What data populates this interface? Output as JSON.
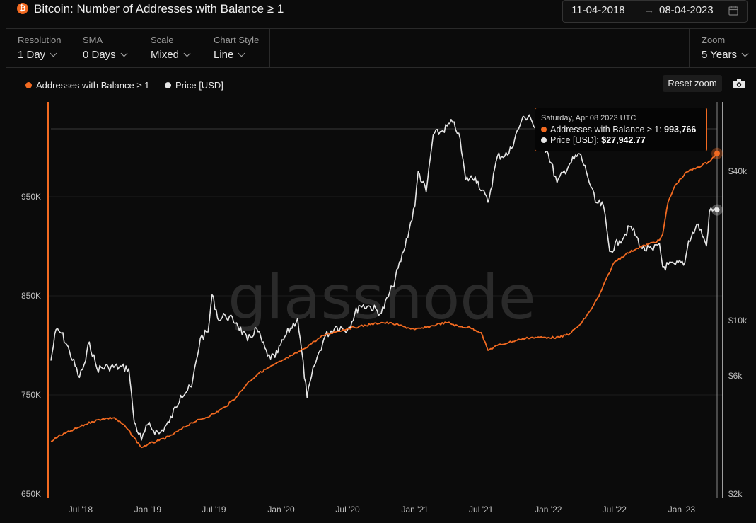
{
  "header": {
    "title": "Bitcoin: Number of Addresses with Balance ≥ 1",
    "date_start": "11-04-2018",
    "date_arrow": "→",
    "date_end": "08-04-2023"
  },
  "toolbar": {
    "resolution": {
      "label": "Resolution",
      "value": "1 Day"
    },
    "sma": {
      "label": "SMA",
      "value": "0 Days"
    },
    "scale": {
      "label": "Scale",
      "value": "Mixed"
    },
    "chart_style": {
      "label": "Chart Style",
      "value": "Line"
    },
    "zoom": {
      "label": "Zoom",
      "value": "5 Years"
    }
  },
  "controls": {
    "reset_zoom": "Reset zoom"
  },
  "icons": [
    "bitcoin-icon",
    "calendar-icon",
    "camera-icon"
  ],
  "watermark": "glassnode",
  "colors": {
    "addresses": "#f26a21",
    "price": "#e6e6e6",
    "background": "#0b0b0b"
  },
  "tooltip": {
    "date": "Saturday, Apr 08 2023 UTC",
    "row1_label": "Addresses with Balance ≥ 1:",
    "row1_value": "993,766",
    "row2_label": "Price [USD]:",
    "row2_value": "$27,942.77"
  },
  "chart_data": {
    "type": "line",
    "title": "Bitcoin: Number of Addresses with Balance ≥ 1",
    "legend_placement": "top-left",
    "x_ticks": [
      "Jul '18",
      "Jan '19",
      "Jul '19",
      "Jan '20",
      "Jul '20",
      "Jan '21",
      "Jul '21",
      "Jan '22",
      "Jul '22",
      "Jan '23"
    ],
    "y_left": {
      "ticks": [
        "650K",
        "750K",
        "850K",
        "950K"
      ],
      "range": [
        650000,
        1050000
      ],
      "scale": "linear"
    },
    "y_right": {
      "ticks": [
        "$2k",
        "$6k",
        "$10k",
        "$40k"
      ],
      "range": [
        2000,
        70000
      ],
      "scale": "log"
    },
    "series": [
      {
        "name": "Addresses with Balance ≥ 1",
        "axis": "left",
        "color": "#f26a21",
        "points": [
          [
            "2018-04-11",
            703000
          ],
          [
            "2018-05-01",
            708000
          ],
          [
            "2018-06-01",
            713000
          ],
          [
            "2018-07-01",
            718000
          ],
          [
            "2018-08-01",
            723000
          ],
          [
            "2018-09-01",
            726000
          ],
          [
            "2018-10-01",
            727000
          ],
          [
            "2018-11-01",
            718000
          ],
          [
            "2018-12-15",
            697000
          ],
          [
            "2019-01-01",
            700000
          ],
          [
            "2019-02-01",
            704000
          ],
          [
            "2019-03-01",
            708000
          ],
          [
            "2019-04-01",
            715000
          ],
          [
            "2019-05-01",
            722000
          ],
          [
            "2019-06-01",
            726000
          ],
          [
            "2019-07-01",
            731000
          ],
          [
            "2019-08-01",
            738000
          ],
          [
            "2019-09-01",
            748000
          ],
          [
            "2019-10-01",
            762000
          ],
          [
            "2019-11-01",
            772000
          ],
          [
            "2019-12-01",
            778000
          ],
          [
            "2020-01-01",
            784000
          ],
          [
            "2020-02-01",
            790000
          ],
          [
            "2020-03-01",
            796000
          ],
          [
            "2020-04-01",
            804000
          ],
          [
            "2020-05-01",
            811000
          ],
          [
            "2020-06-01",
            814000
          ],
          [
            "2020-07-01",
            817000
          ],
          [
            "2020-08-01",
            819000
          ],
          [
            "2020-09-01",
            821000
          ],
          [
            "2020-10-01",
            823000
          ],
          [
            "2020-11-01",
            822000
          ],
          [
            "2020-12-01",
            819000
          ],
          [
            "2021-01-01",
            816000
          ],
          [
            "2021-02-01",
            818000
          ],
          [
            "2021-03-01",
            821000
          ],
          [
            "2021-04-01",
            823000
          ],
          [
            "2021-05-01",
            819000
          ],
          [
            "2021-06-01",
            818000
          ],
          [
            "2021-07-01",
            813000
          ],
          [
            "2021-07-20",
            795000
          ],
          [
            "2021-08-15",
            800000
          ],
          [
            "2021-09-15",
            803000
          ],
          [
            "2021-10-15",
            806000
          ],
          [
            "2021-11-15",
            808000
          ],
          [
            "2022-01-01",
            808000
          ],
          [
            "2022-02-01",
            808000
          ],
          [
            "2022-03-01",
            812000
          ],
          [
            "2022-04-01",
            822000
          ],
          [
            "2022-05-01",
            838000
          ],
          [
            "2022-05-20",
            850000
          ],
          [
            "2022-06-15",
            872000
          ],
          [
            "2022-07-01",
            884000
          ],
          [
            "2022-08-01",
            892000
          ],
          [
            "2022-09-01",
            898000
          ],
          [
            "2022-10-01",
            902000
          ],
          [
            "2022-11-01",
            906000
          ],
          [
            "2022-11-10",
            912000
          ],
          [
            "2022-11-25",
            945000
          ],
          [
            "2022-12-15",
            962000
          ],
          [
            "2023-01-15",
            975000
          ],
          [
            "2023-02-15",
            980000
          ],
          [
            "2023-03-15",
            985000
          ],
          [
            "2023-04-08",
            993766
          ]
        ]
      },
      {
        "name": "Price [USD]",
        "axis": "right",
        "color": "#e6e6e6",
        "points": [
          [
            "2018-04-11",
            6900
          ],
          [
            "2018-04-25",
            9200
          ],
          [
            "2018-05-10",
            8900
          ],
          [
            "2018-06-01",
            7500
          ],
          [
            "2018-06-28",
            5900
          ],
          [
            "2018-07-15",
            6900
          ],
          [
            "2018-07-25",
            8200
          ],
          [
            "2018-08-15",
            6400
          ],
          [
            "2018-09-15",
            6500
          ],
          [
            "2018-10-15",
            6500
          ],
          [
            "2018-11-10",
            6400
          ],
          [
            "2018-11-25",
            3900
          ],
          [
            "2018-12-15",
            3300
          ],
          [
            "2019-01-01",
            3800
          ],
          [
            "2019-02-01",
            3500
          ],
          [
            "2019-03-01",
            3900
          ],
          [
            "2019-04-01",
            5000
          ],
          [
            "2019-05-01",
            5400
          ],
          [
            "2019-05-25",
            8500
          ],
          [
            "2019-06-15",
            9000
          ],
          [
            "2019-06-26",
            12700
          ],
          [
            "2019-07-15",
            10000
          ],
          [
            "2019-08-01",
            10500
          ],
          [
            "2019-09-01",
            9800
          ],
          [
            "2019-10-01",
            8300
          ],
          [
            "2019-10-26",
            9300
          ],
          [
            "2019-11-25",
            7200
          ],
          [
            "2019-12-15",
            7100
          ],
          [
            "2020-01-15",
            8800
          ],
          [
            "2020-02-15",
            10200
          ],
          [
            "2020-03-12",
            4900
          ],
          [
            "2020-04-01",
            6600
          ],
          [
            "2020-05-01",
            8700
          ],
          [
            "2020-06-01",
            9500
          ],
          [
            "2020-07-01",
            9200
          ],
          [
            "2020-08-01",
            11500
          ],
          [
            "2020-09-01",
            11400
          ],
          [
            "2020-10-01",
            10700
          ],
          [
            "2020-11-01",
            13700
          ],
          [
            "2020-12-01",
            19000
          ],
          [
            "2021-01-01",
            29000
          ],
          [
            "2021-01-10",
            40000
          ],
          [
            "2021-02-01",
            33000
          ],
          [
            "2021-02-20",
            56000
          ],
          [
            "2021-03-15",
            58000
          ],
          [
            "2021-04-14",
            63000
          ],
          [
            "2021-05-01",
            57000
          ],
          [
            "2021-05-20",
            37000
          ],
          [
            "2021-06-15",
            38000
          ],
          [
            "2021-07-20",
            30000
          ],
          [
            "2021-08-15",
            46000
          ],
          [
            "2021-09-15",
            47000
          ],
          [
            "2021-10-20",
            64000
          ],
          [
            "2021-11-10",
            67500
          ],
          [
            "2021-12-01",
            57000
          ],
          [
            "2022-01-01",
            47000
          ],
          [
            "2022-01-25",
            36000
          ],
          [
            "2022-03-01",
            43000
          ],
          [
            "2022-03-28",
            47000
          ],
          [
            "2022-04-15",
            40000
          ],
          [
            "2022-05-10",
            30000
          ],
          [
            "2022-06-01",
            29000
          ],
          [
            "2022-06-18",
            19000
          ],
          [
            "2022-07-15",
            21000
          ],
          [
            "2022-08-15",
            24000
          ],
          [
            "2022-09-15",
            19500
          ],
          [
            "2022-10-15",
            19200
          ],
          [
            "2022-11-01",
            20500
          ],
          [
            "2022-11-10",
            16500
          ],
          [
            "2022-12-15",
            16800
          ],
          [
            "2023-01-10",
            17200
          ],
          [
            "2023-01-20",
            21000
          ],
          [
            "2023-02-15",
            24500
          ],
          [
            "2023-03-10",
            20000
          ],
          [
            "2023-03-18",
            27500
          ],
          [
            "2023-04-08",
            27942.77
          ]
        ]
      }
    ]
  }
}
